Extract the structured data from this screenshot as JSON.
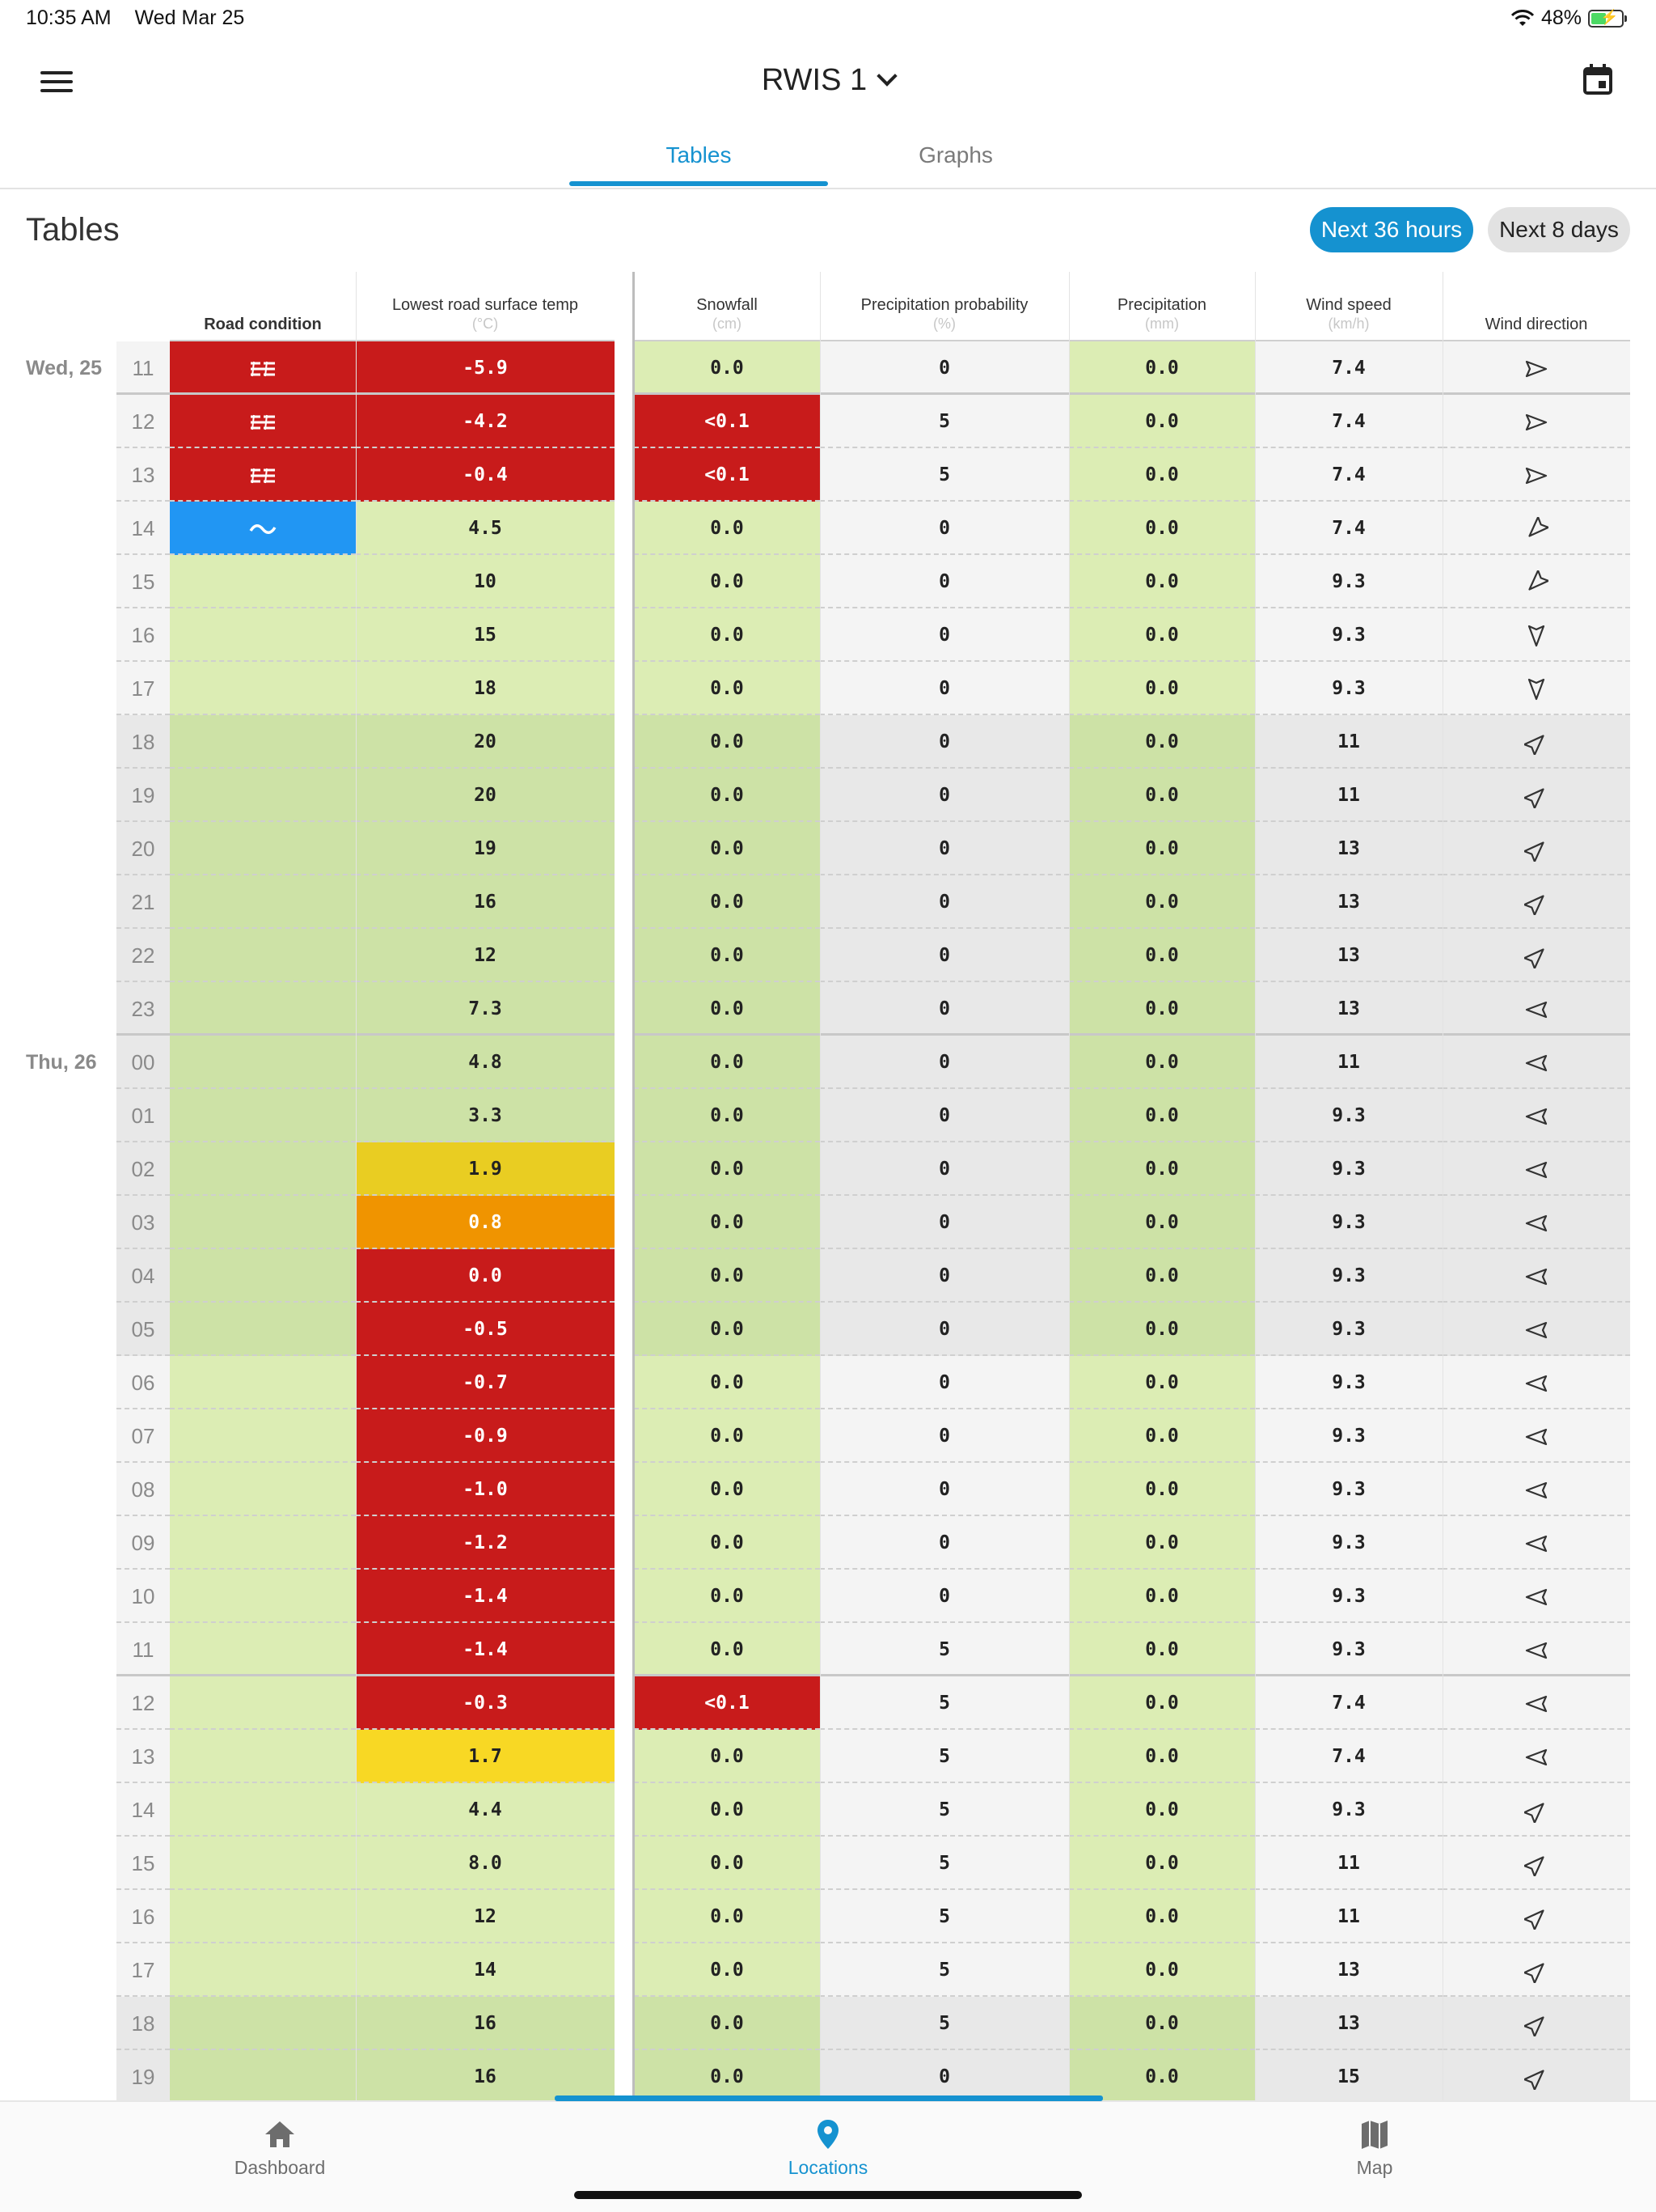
{
  "status": {
    "time": "10:35 AM",
    "date": "Wed Mar 25",
    "battery": "48%"
  },
  "app": {
    "title": "RWIS 1"
  },
  "tabs": [
    {
      "label": "Tables",
      "active": true
    },
    {
      "label": "Graphs",
      "active": false
    }
  ],
  "section": {
    "title": "Tables",
    "range_buttons": [
      {
        "label": "Next 36 hours",
        "active": true
      },
      {
        "label": "Next 8 days",
        "active": false
      }
    ]
  },
  "columns": [
    {
      "label": "Road condition",
      "unit": ""
    },
    {
      "label": "Lowest road surface temp",
      "unit": "(°C)"
    },
    {
      "label": "Snowfall",
      "unit": "(cm)"
    },
    {
      "label": "Precipitation probability",
      "unit": "(%)"
    },
    {
      "label": "Precipitation",
      "unit": "(mm)"
    },
    {
      "label": "Wind speed",
      "unit": "(km/h)"
    },
    {
      "label": "Wind direction",
      "unit": ""
    }
  ],
  "colors": {
    "red": "#c81b1b",
    "blue": "#2196f3",
    "yellow_dark": "#e9cd22",
    "yellow": "#f8d824",
    "orange": "#f09400",
    "green_light": "#dcedb4",
    "green_dark": "#cde2a6",
    "grey_light": "#f4f4f4",
    "grey_dark": "#e8e8e8",
    "accent": "#1592d0"
  },
  "rows": [
    {
      "day": "Wed, 25",
      "hour": "11",
      "road": "icy",
      "temp": "-5.9",
      "temp_color": "red",
      "snow": "0.0",
      "snow_color": "",
      "prob": "0",
      "precip": "0.0",
      "wind": "7.4",
      "wind_dir": "west"
    },
    {
      "day": "",
      "hour": "12",
      "road": "icy",
      "temp": "-4.2",
      "temp_color": "red",
      "snow": "<0.1",
      "snow_color": "red",
      "prob": "5",
      "precip": "0.0",
      "wind": "7.4",
      "wind_dir": "west"
    },
    {
      "day": "",
      "hour": "13",
      "road": "icy",
      "temp": "-0.4",
      "temp_color": "red",
      "snow": "<0.1",
      "snow_color": "red",
      "prob": "5",
      "precip": "0.0",
      "wind": "7.4",
      "wind_dir": "west"
    },
    {
      "day": "",
      "hour": "14",
      "road": "wet",
      "temp": "4.5",
      "temp_color": "",
      "snow": "0.0",
      "snow_color": "",
      "prob": "0",
      "precip": "0.0",
      "wind": "7.4",
      "wind_dir": "northeast"
    },
    {
      "day": "",
      "hour": "15",
      "road": "",
      "temp": "10",
      "temp_color": "",
      "snow": "0.0",
      "snow_color": "",
      "prob": "0",
      "precip": "0.0",
      "wind": "9.3",
      "wind_dir": "northeast"
    },
    {
      "day": "",
      "hour": "16",
      "road": "",
      "temp": "15",
      "temp_color": "",
      "snow": "0.0",
      "snow_color": "",
      "prob": "0",
      "precip": "0.0",
      "wind": "9.3",
      "wind_dir": "north"
    },
    {
      "day": "",
      "hour": "17",
      "road": "",
      "temp": "18",
      "temp_color": "",
      "snow": "0.0",
      "snow_color": "",
      "prob": "0",
      "precip": "0.0",
      "wind": "9.3",
      "wind_dir": "north"
    },
    {
      "day": "",
      "hour": "18",
      "road": "",
      "temp": "20",
      "temp_color": "",
      "snow": "0.0",
      "snow_color": "",
      "prob": "0",
      "precip": "0.0",
      "wind": "11",
      "wind_dir": "southwest"
    },
    {
      "day": "",
      "hour": "19",
      "road": "",
      "temp": "20",
      "temp_color": "",
      "snow": "0.0",
      "snow_color": "",
      "prob": "0",
      "precip": "0.0",
      "wind": "11",
      "wind_dir": "southwest"
    },
    {
      "day": "",
      "hour": "20",
      "road": "",
      "temp": "19",
      "temp_color": "",
      "snow": "0.0",
      "snow_color": "",
      "prob": "0",
      "precip": "0.0",
      "wind": "13",
      "wind_dir": "southwest"
    },
    {
      "day": "",
      "hour": "21",
      "road": "",
      "temp": "16",
      "temp_color": "",
      "snow": "0.0",
      "snow_color": "",
      "prob": "0",
      "precip": "0.0",
      "wind": "13",
      "wind_dir": "southwest"
    },
    {
      "day": "",
      "hour": "22",
      "road": "",
      "temp": "12",
      "temp_color": "",
      "snow": "0.0",
      "snow_color": "",
      "prob": "0",
      "precip": "0.0",
      "wind": "13",
      "wind_dir": "southwest"
    },
    {
      "day": "",
      "hour": "23",
      "road": "",
      "temp": "7.3",
      "temp_color": "",
      "snow": "0.0",
      "snow_color": "",
      "prob": "0",
      "precip": "0.0",
      "wind": "13",
      "wind_dir": "east"
    },
    {
      "day": "Thu, 26",
      "hour": "00",
      "road": "",
      "temp": "4.8",
      "temp_color": "",
      "snow": "0.0",
      "snow_color": "",
      "prob": "0",
      "precip": "0.0",
      "wind": "11",
      "wind_dir": "east"
    },
    {
      "day": "",
      "hour": "01",
      "road": "",
      "temp": "3.3",
      "temp_color": "",
      "snow": "0.0",
      "snow_color": "",
      "prob": "0",
      "precip": "0.0",
      "wind": "9.3",
      "wind_dir": "east"
    },
    {
      "day": "",
      "hour": "02",
      "road": "",
      "temp": "1.9",
      "temp_color": "yellow_dark",
      "snow": "0.0",
      "snow_color": "",
      "prob": "0",
      "precip": "0.0",
      "wind": "9.3",
      "wind_dir": "east"
    },
    {
      "day": "",
      "hour": "03",
      "road": "",
      "temp": "0.8",
      "temp_color": "orange",
      "snow": "0.0",
      "snow_color": "",
      "prob": "0",
      "precip": "0.0",
      "wind": "9.3",
      "wind_dir": "east"
    },
    {
      "day": "",
      "hour": "04",
      "road": "",
      "temp": "0.0",
      "temp_color": "red",
      "snow": "0.0",
      "snow_color": "",
      "prob": "0",
      "precip": "0.0",
      "wind": "9.3",
      "wind_dir": "east"
    },
    {
      "day": "",
      "hour": "05",
      "road": "",
      "temp": "-0.5",
      "temp_color": "red",
      "snow": "0.0",
      "snow_color": "",
      "prob": "0",
      "precip": "0.0",
      "wind": "9.3",
      "wind_dir": "east"
    },
    {
      "day": "",
      "hour": "06",
      "road": "",
      "temp": "-0.7",
      "temp_color": "red",
      "snow": "0.0",
      "snow_color": "",
      "prob": "0",
      "precip": "0.0",
      "wind": "9.3",
      "wind_dir": "east"
    },
    {
      "day": "",
      "hour": "07",
      "road": "",
      "temp": "-0.9",
      "temp_color": "red",
      "snow": "0.0",
      "snow_color": "",
      "prob": "0",
      "precip": "0.0",
      "wind": "9.3",
      "wind_dir": "east"
    },
    {
      "day": "",
      "hour": "08",
      "road": "",
      "temp": "-1.0",
      "temp_color": "red",
      "snow": "0.0",
      "snow_color": "",
      "prob": "0",
      "precip": "0.0",
      "wind": "9.3",
      "wind_dir": "east"
    },
    {
      "day": "",
      "hour": "09",
      "road": "",
      "temp": "-1.2",
      "temp_color": "red",
      "snow": "0.0",
      "snow_color": "",
      "prob": "0",
      "precip": "0.0",
      "wind": "9.3",
      "wind_dir": "east"
    },
    {
      "day": "",
      "hour": "10",
      "road": "",
      "temp": "-1.4",
      "temp_color": "red",
      "snow": "0.0",
      "snow_color": "",
      "prob": "0",
      "precip": "0.0",
      "wind": "9.3",
      "wind_dir": "east"
    },
    {
      "day": "",
      "hour": "11",
      "road": "",
      "temp": "-1.4",
      "temp_color": "red",
      "snow": "0.0",
      "snow_color": "",
      "prob": "5",
      "precip": "0.0",
      "wind": "9.3",
      "wind_dir": "east"
    },
    {
      "day": "",
      "hour": "12",
      "road": "",
      "temp": "-0.3",
      "temp_color": "red",
      "snow": "<0.1",
      "snow_color": "red",
      "prob": "5",
      "precip": "0.0",
      "wind": "7.4",
      "wind_dir": "east"
    },
    {
      "day": "",
      "hour": "13",
      "road": "",
      "temp": "1.7",
      "temp_color": "yellow",
      "snow": "0.0",
      "snow_color": "",
      "prob": "5",
      "precip": "0.0",
      "wind": "7.4",
      "wind_dir": "east"
    },
    {
      "day": "",
      "hour": "14",
      "road": "",
      "temp": "4.4",
      "temp_color": "",
      "snow": "0.0",
      "snow_color": "",
      "prob": "5",
      "precip": "0.0",
      "wind": "9.3",
      "wind_dir": "southwest"
    },
    {
      "day": "",
      "hour": "15",
      "road": "",
      "temp": "8.0",
      "temp_color": "",
      "snow": "0.0",
      "snow_color": "",
      "prob": "5",
      "precip": "0.0",
      "wind": "11",
      "wind_dir": "southwest"
    },
    {
      "day": "",
      "hour": "16",
      "road": "",
      "temp": "12",
      "temp_color": "",
      "snow": "0.0",
      "snow_color": "",
      "prob": "5",
      "precip": "0.0",
      "wind": "11",
      "wind_dir": "southwest"
    },
    {
      "day": "",
      "hour": "17",
      "road": "",
      "temp": "14",
      "temp_color": "",
      "snow": "0.0",
      "snow_color": "",
      "prob": "5",
      "precip": "0.0",
      "wind": "13",
      "wind_dir": "southwest"
    },
    {
      "day": "",
      "hour": "18",
      "road": "",
      "temp": "16",
      "temp_color": "",
      "snow": "0.0",
      "snow_color": "",
      "prob": "5",
      "precip": "0.0",
      "wind": "13",
      "wind_dir": "southwest"
    },
    {
      "day": "",
      "hour": "19",
      "road": "",
      "temp": "16",
      "temp_color": "",
      "snow": "0.0",
      "snow_color": "",
      "prob": "0",
      "precip": "0.0",
      "wind": "15",
      "wind_dir": "southwest"
    }
  ],
  "nav": [
    {
      "label": "Dashboard",
      "icon": "home-icon",
      "active": false
    },
    {
      "label": "Locations",
      "icon": "location-pin-icon",
      "active": true
    },
    {
      "label": "Map",
      "icon": "map-icon",
      "active": false
    }
  ]
}
